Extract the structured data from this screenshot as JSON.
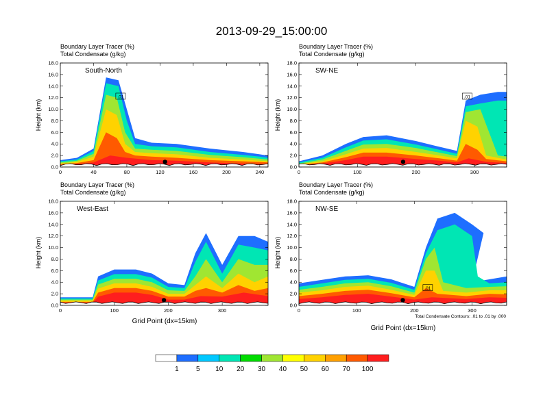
{
  "figure": {
    "title": "2013-09-29_15:00:00",
    "footnote": "Total Condensate Contours: .01 to .01 by .000"
  },
  "colorbar": {
    "colors": [
      "#ffffff",
      "#1e6eff",
      "#00c8ff",
      "#00e6b4",
      "#00dc00",
      "#a0e632",
      "#ffff00",
      "#ffd200",
      "#ffa000",
      "#ff5a00",
      "#ff1e1e"
    ],
    "labels": [
      "1",
      "5",
      "10",
      "20",
      "30",
      "40",
      "50",
      "60",
      "70",
      "100"
    ]
  },
  "chart_data": [
    {
      "type": "heatmap",
      "panel_label": "South-North",
      "header_line1": "Boundary Layer Tracer   (%)",
      "header_line2": "Total Condensate   (g/kg)",
      "ylabel": "Height (km)",
      "xlabel": "",
      "xlim": [
        0,
        250
      ],
      "ylim": [
        0,
        18
      ],
      "xticks": [
        "0",
        "40",
        "80",
        "120",
        "160",
        "200",
        "240"
      ],
      "yticks": [
        "0.0",
        "2.0",
        "4.0",
        "6.0",
        "8.0",
        "10.0",
        "12.0",
        "14.0",
        "16.0",
        "18.0"
      ],
      "contour_label": ".01",
      "marker_x": 126
    },
    {
      "type": "heatmap",
      "panel_label": "SW-NE",
      "header_line1": "Boundary Layer Tracer   (%)",
      "header_line2": "Total Condensate   (g/kg)",
      "ylabel": "Height (km)",
      "xlabel": "",
      "xlim": [
        0,
        355
      ],
      "ylim": [
        0,
        18
      ],
      "xticks": [
        "0",
        "100",
        "200",
        "300"
      ],
      "yticks": [
        "0.0",
        "2.0",
        "4.0",
        "6.0",
        "8.0",
        "10.0",
        "12.0",
        "14.0",
        "16.0",
        "18.0"
      ],
      "contour_label": ".01",
      "marker_x": 178
    },
    {
      "type": "heatmap",
      "panel_label": "West-East",
      "header_line1": "Boundary Layer Tracer   (%)",
      "header_line2": "Total Condensate   (g/kg)",
      "ylabel": "Height (km)",
      "xlabel": "Grid Point (dx=15km)",
      "xlim": [
        0,
        385
      ],
      "ylim": [
        0,
        18
      ],
      "xticks": [
        "0",
        "100",
        "200",
        "300"
      ],
      "yticks": [
        "0.0",
        "2.0",
        "4.0",
        "6.0",
        "8.0",
        "10.0",
        "12.0",
        "14.0",
        "16.0",
        "18.0"
      ],
      "contour_label": "",
      "marker_x": 192
    },
    {
      "type": "heatmap",
      "panel_label": "NW-SE",
      "header_line1": "Boundary Layer Tracer   (%)",
      "header_line2": "Total Condensate   (g/kg)",
      "ylabel": "Height (km)",
      "xlabel": "Grid Point (dx=15km)",
      "xlim": [
        0,
        360
      ],
      "ylim": [
        0,
        18
      ],
      "xticks": [
        "0",
        "100",
        "200",
        "300"
      ],
      "yticks": [
        "0.0",
        "2.0",
        "4.0",
        "6.0",
        "8.0",
        "10.0",
        "12.0",
        "14.0",
        "16.0",
        "18.0"
      ],
      "contour_label": ".01",
      "marker_x": 180
    }
  ]
}
